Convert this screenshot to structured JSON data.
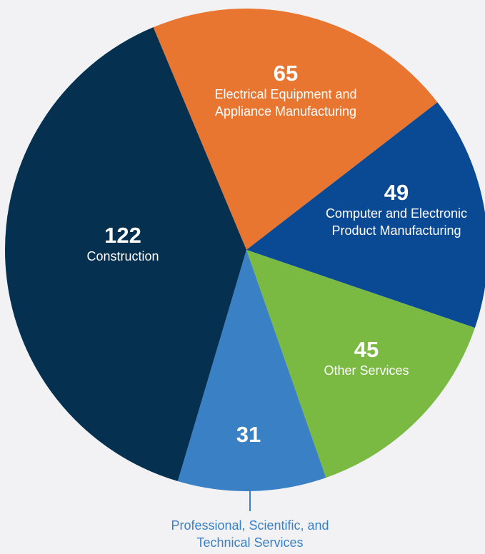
{
  "chart_data": {
    "type": "pie",
    "categories": [
      "Electrical Equipment and Appliance Manufacturing",
      "Computer and Electronic Product Manufacturing",
      "Other Services",
      "Professional, Scientific, and Technical Services",
      "Construction"
    ],
    "values": [
      65,
      49,
      45,
      31,
      122
    ],
    "colors": [
      "#e87530",
      "#0a4a94",
      "#7aba42",
      "#3a80c4",
      "#05304f"
    ]
  }
}
